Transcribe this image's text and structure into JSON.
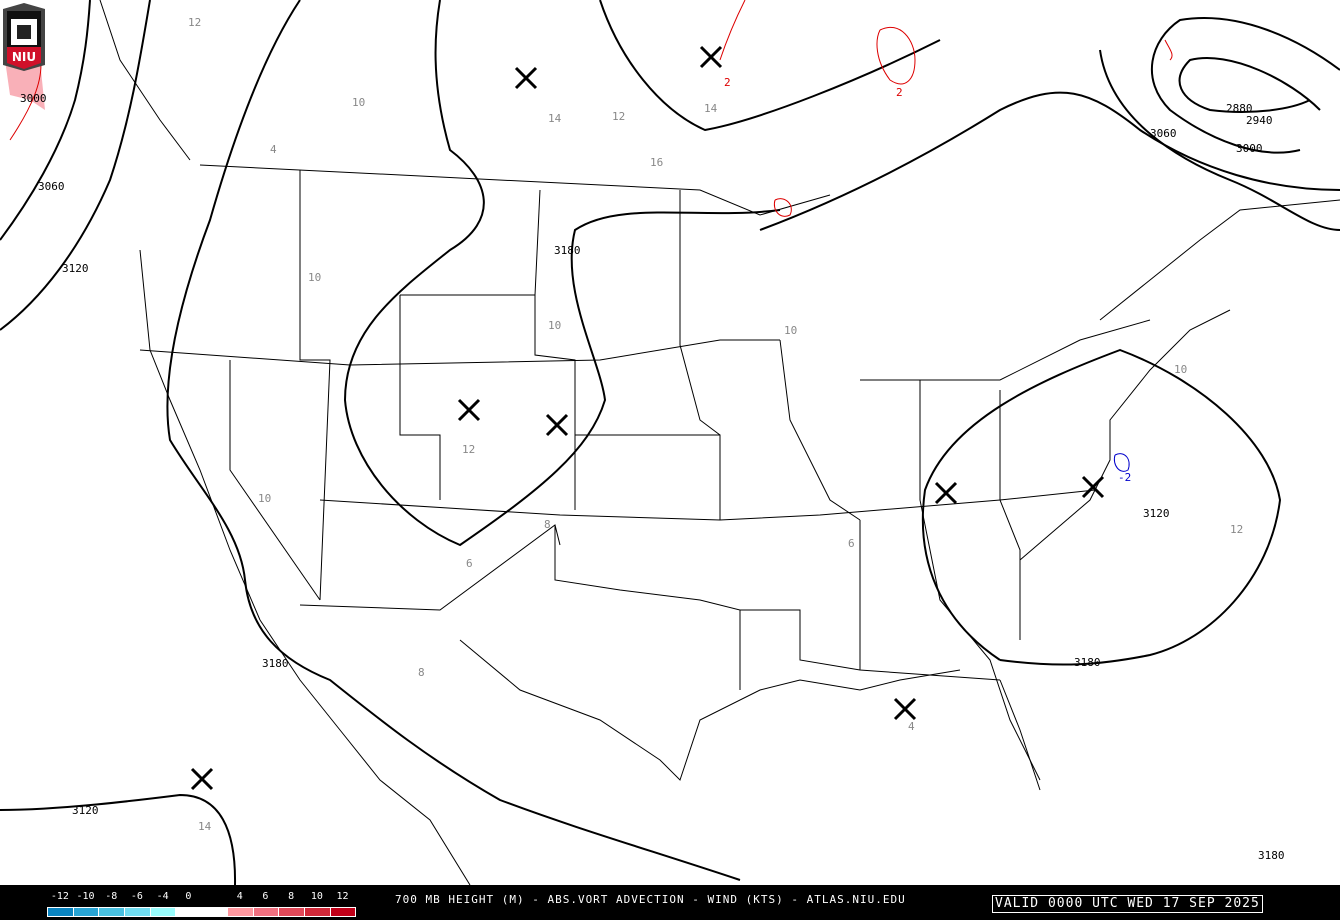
{
  "map": {
    "height_contour_labels": [
      "3000",
      "3060",
      "3120",
      "3180",
      "3180",
      "3180",
      "3120",
      "3120",
      "3060",
      "3000",
      "2880",
      "2940",
      "3180"
    ],
    "vorticity_labels": [
      "12",
      "10",
      "14",
      "16",
      "12",
      "14",
      "10",
      "10",
      "10",
      "8",
      "6",
      "4",
      "12",
      "10",
      "8",
      "6",
      "4",
      "12",
      "14",
      "10",
      "-2",
      "2",
      "2"
    ],
    "high_markers": 8,
    "logo_text": "NIU"
  },
  "legend": {
    "tick_labels": [
      "-12",
      "-10",
      "-8",
      "-6",
      "-4",
      "0",
      "4",
      "6",
      "8",
      "10",
      "12"
    ],
    "colors": [
      "#0a84c0",
      "#28a4d4",
      "#48c0e0",
      "#70dcf0",
      "#98fcfc",
      "#ffffff",
      "#ffffff",
      "#ff98a0",
      "#f07080",
      "#e04858",
      "#d02838",
      "#c00018"
    ]
  },
  "footer": {
    "title": "700 MB HEIGHT (M) - ABS.VORT ADVECTION - WIND (KTS) - ATLAS.NIU.EDU",
    "valid": "VALID 0000 UTC WED 17 SEP 2025"
  }
}
